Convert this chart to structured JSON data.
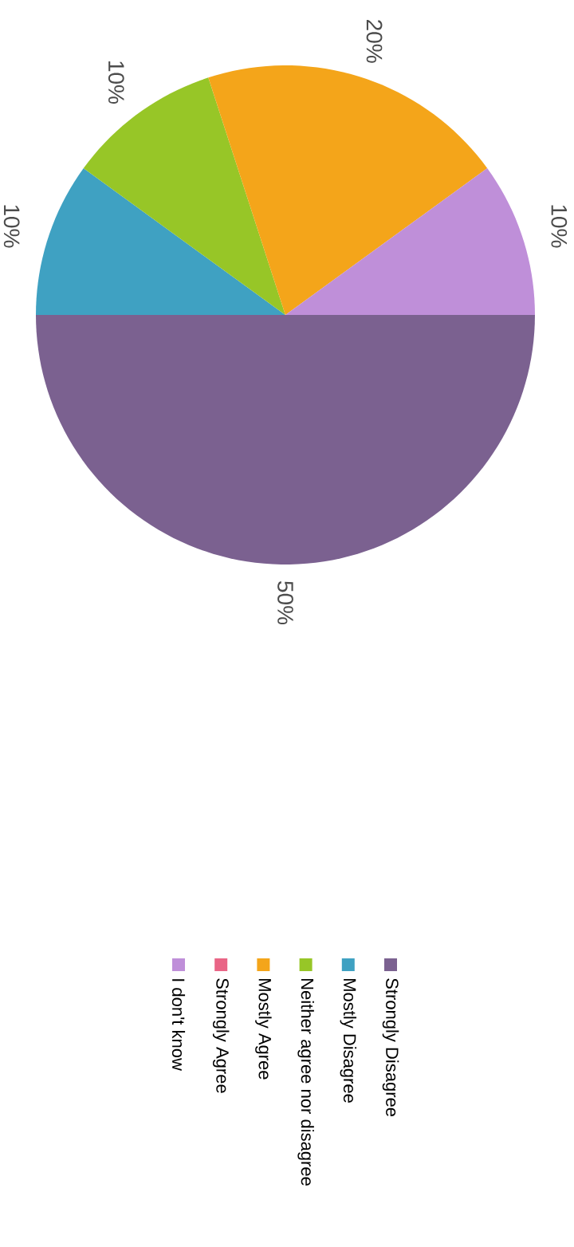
{
  "chart_data": {
    "type": "pie",
    "categories": [
      "Strongly Disagree",
      "Mostly Disagree",
      "Neither agree nor disagree",
      "Mostly Agree",
      "Strongly Agree",
      "I don't know"
    ],
    "values": [
      50,
      10,
      10,
      20,
      0,
      10
    ],
    "colors": [
      "#7b6190",
      "#3fa1c2",
      "#97c627",
      "#f4a51a",
      "#e96586",
      "#bf8fd9"
    ],
    "value_labels": [
      "50%",
      "10%",
      "10%",
      "20%",
      null,
      "10%"
    ],
    "legend": "bottom"
  }
}
